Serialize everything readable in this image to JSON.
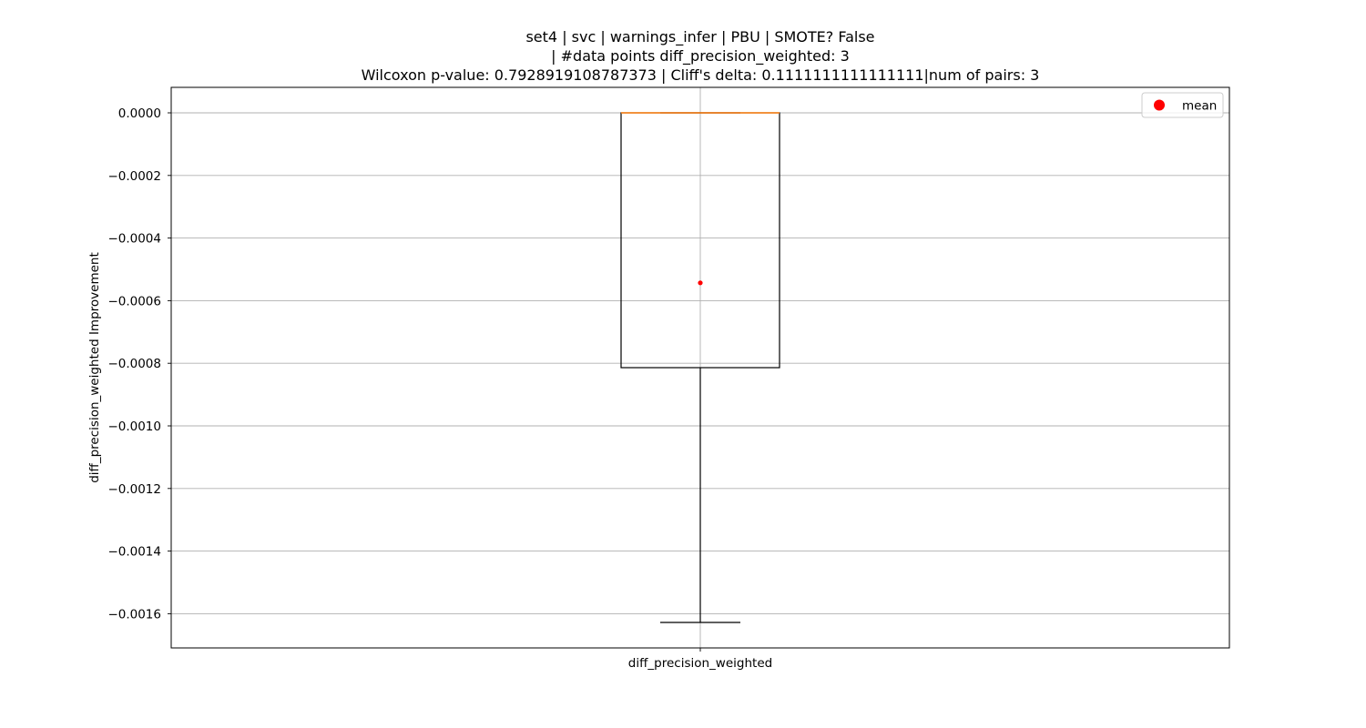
{
  "chart_data": {
    "type": "box",
    "title_lines": [
      "set4 | svc | warnings_infer | PBU | SMOTE? False",
      "| #data points diff_precision_weighted: 3",
      "Wilcoxon p-value: 0.7928919108787373 | Cliff's delta: 0.1111111111111111|num of pairs: 3"
    ],
    "xlabel": "",
    "ylabel": "diff_precision_weighted Improvement",
    "categories": [
      "diff_precision_weighted"
    ],
    "box": {
      "whisker_low": -0.001628,
      "q1": -0.000814,
      "median": 0.0,
      "q3": 0.0,
      "whisker_high": 0.0,
      "mean": -0.000543
    },
    "ylim": [
      -0.00171,
      8e-05
    ],
    "yticks": [
      0.0,
      -0.0002,
      -0.0004,
      -0.0006,
      -0.0008,
      -0.001,
      -0.0012,
      -0.0014,
      -0.0016
    ],
    "ytick_labels": [
      "0.0000",
      "−0.0002",
      "−0.0004",
      "−0.0006",
      "−0.0008",
      "−0.0010",
      "−0.0012",
      "−0.0014",
      "−0.0016"
    ],
    "grid": true,
    "legend": {
      "placement": "top-right",
      "entries": [
        {
          "label": "mean",
          "marker": "circle",
          "color": "#ff0000"
        }
      ]
    },
    "colors": {
      "box": "#000000",
      "median": "#ff7f0e",
      "mean": "#ff0000",
      "grid": "#b0b0b0"
    }
  }
}
